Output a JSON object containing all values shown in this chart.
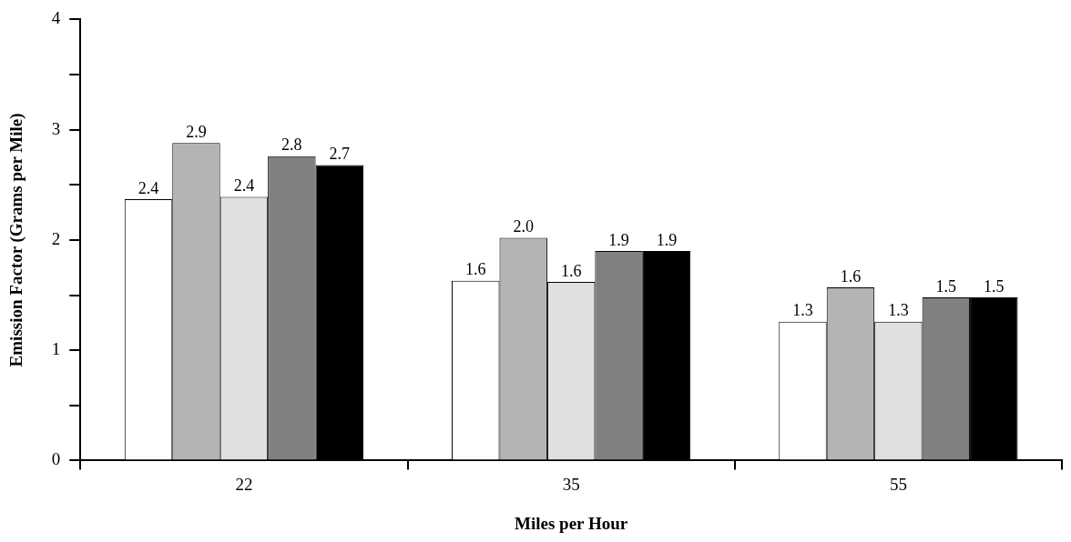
{
  "chart_data": {
    "type": "bar",
    "xlabel": "Miles per Hour",
    "ylabel": "Emission Factor (Grams per Mile)",
    "categories": [
      "22",
      "35",
      "55"
    ],
    "series": [
      {
        "color": "#ffffff",
        "values": [
          2.37,
          1.63,
          1.26
        ],
        "value_labels": [
          "2.4",
          "1.6",
          "1.3"
        ]
      },
      {
        "color": "#b4b4b4",
        "values": [
          2.88,
          2.02,
          1.57
        ],
        "value_labels": [
          "2.9",
          "2.0",
          "1.6"
        ]
      },
      {
        "color": "#e0e0e0",
        "values": [
          2.39,
          1.62,
          1.26
        ],
        "value_labels": [
          "2.4",
          "1.6",
          "1.3"
        ]
      },
      {
        "color": "#808080",
        "values": [
          2.76,
          1.9,
          1.48
        ],
        "value_labels": [
          "2.8",
          "1.9",
          "1.5"
        ]
      },
      {
        "color": "#000000",
        "values": [
          2.68,
          1.9,
          1.48
        ],
        "value_labels": [
          "2.7",
          "1.9",
          "1.5"
        ]
      }
    ],
    "ylim": [
      0,
      4
    ],
    "yticks": [
      0,
      {
        "value": 0.5,
        "label": null
      },
      1,
      {
        "value": 1.5,
        "label": null
      },
      2,
      {
        "value": 2.5,
        "label": null
      },
      3,
      {
        "value": 3.5,
        "label": null
      },
      4
    ],
    "grid": false,
    "legend": false
  }
}
